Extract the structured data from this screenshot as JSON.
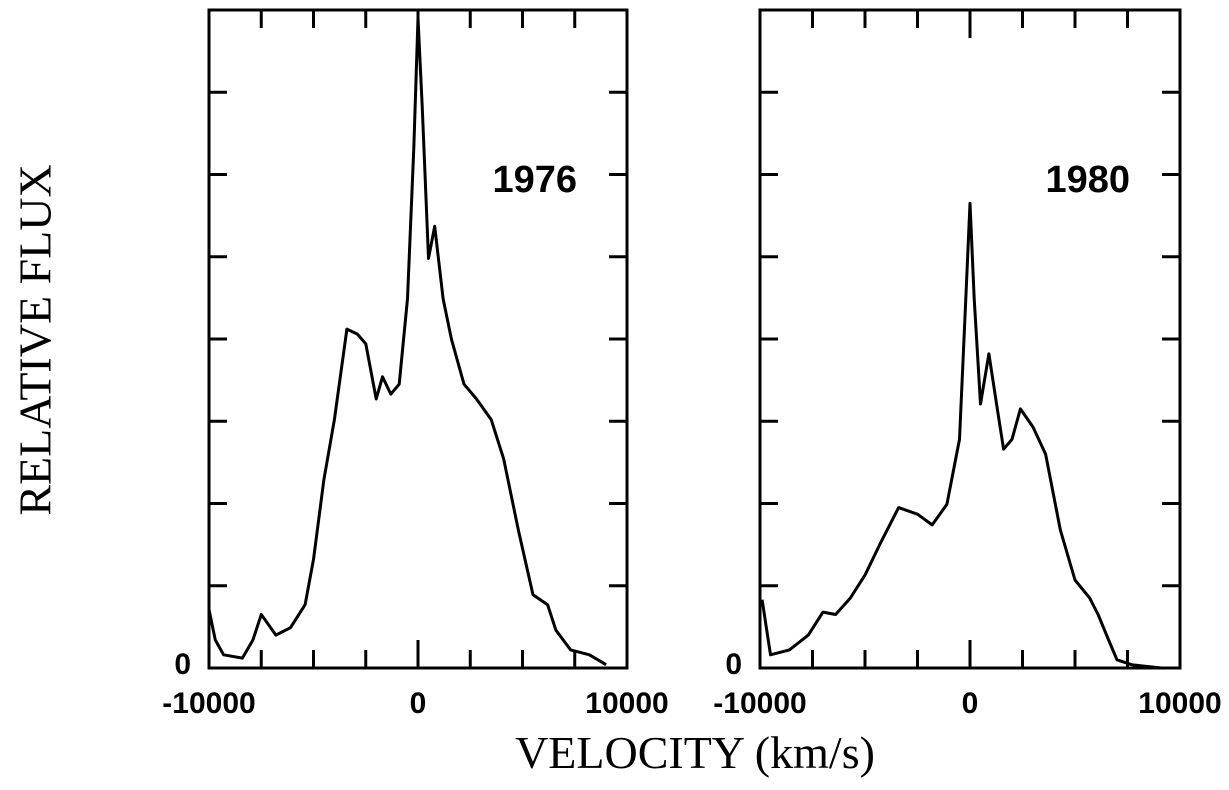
{
  "figure": {
    "xlabel": "VELOCITY (km/s)",
    "ylabel": "RELATIVE FLUX"
  },
  "chart_data": [
    {
      "type": "line",
      "annotation": "1976",
      "color": "#000000",
      "xlim": [
        -10000,
        10000
      ],
      "xticks": [
        -10000,
        0,
        10000
      ],
      "minor_xticks": [
        -7500,
        -5000,
        -2500,
        2500,
        5000,
        7500
      ],
      "ylim": [
        0,
        8
      ],
      "yticks": [
        0
      ],
      "minor_yticks": [
        1,
        2,
        3,
        4,
        5,
        6,
        7
      ],
      "x": [
        -10000,
        -9700,
        -9300,
        -8400,
        -7900,
        -7500,
        -6800,
        -6100,
        -5400,
        -5000,
        -4500,
        -4000,
        -3400,
        -2900,
        -2500,
        -2000,
        -1700,
        -1300,
        -900,
        -500,
        -200,
        0,
        200,
        500,
        800,
        1200,
        1600,
        2200,
        2800,
        3500,
        4100,
        4800,
        5500,
        6200,
        6600,
        7300,
        8200,
        9000
      ],
      "values": [
        0.71,
        0.34,
        0.16,
        0.12,
        0.34,
        0.65,
        0.4,
        0.49,
        0.77,
        1.32,
        2.29,
        3.02,
        4.12,
        4.06,
        3.94,
        3.27,
        3.54,
        3.33,
        3.45,
        4.49,
        6.32,
        7.9,
        6.83,
        4.98,
        5.37,
        4.49,
        4.0,
        3.45,
        3.27,
        3.02,
        2.54,
        1.68,
        0.89,
        0.77,
        0.46,
        0.22,
        0.16,
        0.04
      ]
    },
    {
      "type": "line",
      "annotation": "1980",
      "color": "#000000",
      "xlim": [
        -10000,
        10000
      ],
      "xticks": [
        -10000,
        0,
        10000
      ],
      "minor_xticks": [
        -7500,
        -5000,
        -2500,
        2500,
        5000,
        7500
      ],
      "ylim": [
        0,
        8
      ],
      "yticks": [
        0
      ],
      "minor_yticks": [
        1,
        2,
        3,
        4,
        5,
        6,
        7
      ],
      "x": [
        -9900,
        -9500,
        -8600,
        -7700,
        -7000,
        -6400,
        -5700,
        -5000,
        -4300,
        -3400,
        -2500,
        -1800,
        -1100,
        -500,
        -200,
        0,
        200,
        500,
        900,
        1300,
        1600,
        2000,
        2400,
        3000,
        3600,
        4300,
        5000,
        5700,
        6100,
        6600,
        7000,
        7700,
        9100
      ],
      "values": [
        0.83,
        0.16,
        0.22,
        0.4,
        0.68,
        0.65,
        0.85,
        1.13,
        1.5,
        1.95,
        1.87,
        1.74,
        1.99,
        2.78,
        4.49,
        5.65,
        4.49,
        3.21,
        3.82,
        3.15,
        2.66,
        2.78,
        3.15,
        2.93,
        2.6,
        1.68,
        1.07,
        0.85,
        0.65,
        0.34,
        0.1,
        0.04,
        0
      ]
    }
  ]
}
